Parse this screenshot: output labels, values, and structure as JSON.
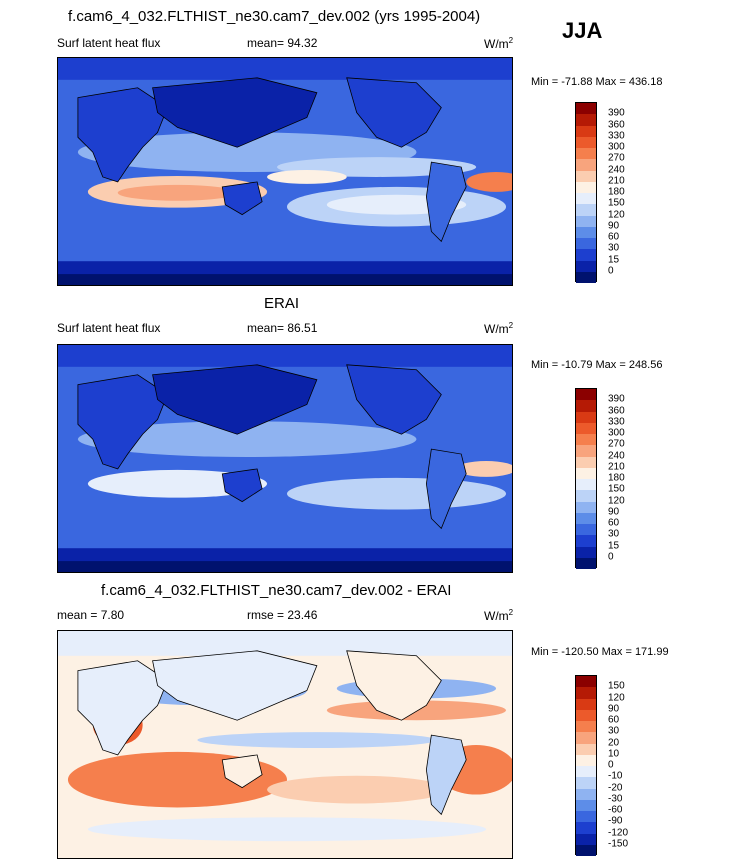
{
  "season": "JJA",
  "panels": [
    {
      "title": "f.cam6_4_032.FLTHIST_ne30.cam7_dev.002 (yrs 1995-2004)",
      "left_label": "Surf latent heat flux",
      "center_label": "mean=  94.32",
      "units": "W/m",
      "units_sup": "2",
      "minmax": "Min = -71.88 Max = 436.18",
      "colorbar_ticks": [
        "390",
        "360",
        "330",
        "300",
        "270",
        "240",
        "210",
        "180",
        "150",
        "120",
        "90",
        "60",
        "30",
        "15",
        "0"
      ],
      "colorbar_colors": [
        "#8b0000",
        "#b51a05",
        "#d93a14",
        "#ec5a2b",
        "#f57f4d",
        "#f8a47d",
        "#fbcdb0",
        "#fdf1e4",
        "#e6eefb",
        "#bcd3f7",
        "#8fb3f1",
        "#5d8de8",
        "#3a67df",
        "#1d3fcf",
        "#0a22a8",
        "#00126e"
      ]
    },
    {
      "title": "ERAI",
      "left_label": "Surf latent heat flux",
      "center_label": "mean=  86.51",
      "units": "W/m",
      "units_sup": "2",
      "minmax": "Min = -10.79 Max = 248.56",
      "colorbar_ticks": [
        "390",
        "360",
        "330",
        "300",
        "270",
        "240",
        "210",
        "180",
        "150",
        "120",
        "90",
        "60",
        "30",
        "15",
        "0"
      ],
      "colorbar_colors": [
        "#8b0000",
        "#b51a05",
        "#d93a14",
        "#ec5a2b",
        "#f57f4d",
        "#f8a47d",
        "#fbcdb0",
        "#fdf1e4",
        "#e6eefb",
        "#bcd3f7",
        "#8fb3f1",
        "#5d8de8",
        "#3a67df",
        "#1d3fcf",
        "#0a22a8",
        "#00126e"
      ]
    },
    {
      "title": "f.cam6_4_032.FLTHIST_ne30.cam7_dev.002 - ERAI",
      "left_label": "mean =   7.80",
      "center_label": "rmse =  23.46",
      "units": "W/m",
      "units_sup": "2",
      "minmax": "Min = -120.50 Max = 171.99",
      "colorbar_ticks": [
        "150",
        "120",
        "90",
        "60",
        "30",
        "20",
        "10",
        "0",
        "-10",
        "-20",
        "-30",
        "-60",
        "-90",
        "-120",
        "-150"
      ],
      "colorbar_colors": [
        "#8b0000",
        "#b51a05",
        "#d93a14",
        "#ec5a2b",
        "#f57f4d",
        "#f8a47d",
        "#fbcdb0",
        "#fdf1e4",
        "#e6eefb",
        "#bcd3f7",
        "#8fb3f1",
        "#5d8de8",
        "#3a67df",
        "#1d3fcf",
        "#0a22a8",
        "#00126e"
      ]
    }
  ]
}
